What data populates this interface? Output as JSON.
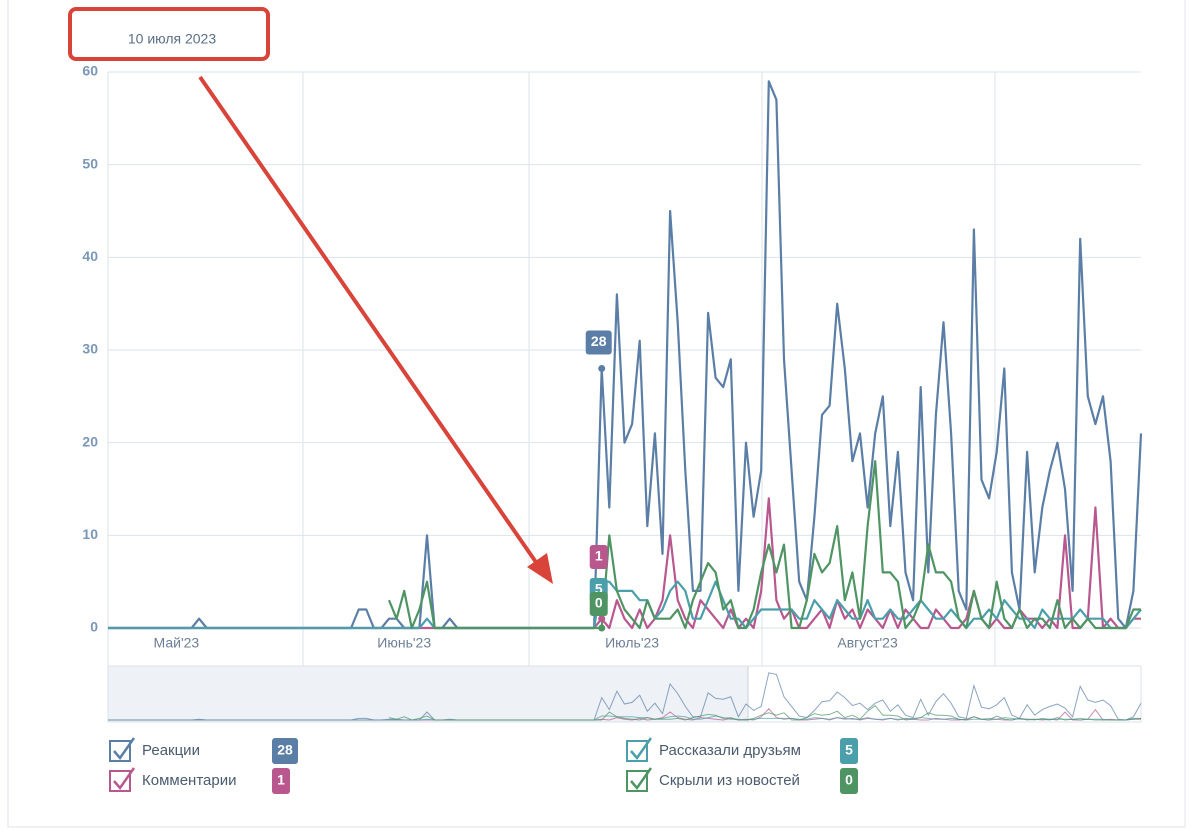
{
  "chart_data": {
    "type": "line",
    "tooltip_date": "10 июля 2023",
    "highlight_index": 65,
    "categories": [
      null,
      null,
      null,
      null,
      null,
      null,
      null,
      null,
      null,
      "Май'23",
      null,
      null,
      null,
      null,
      null,
      null,
      null,
      null,
      null,
      null,
      null,
      null,
      null,
      null,
      null,
      null,
      null,
      null,
      null,
      null,
      null,
      null,
      null,
      null,
      null,
      null,
      null,
      null,
      null,
      "Июнь'23",
      null,
      null,
      null,
      null,
      null,
      null,
      null,
      null,
      null,
      null,
      null,
      null,
      null,
      null,
      null,
      null,
      null,
      null,
      null,
      null,
      null,
      null,
      null,
      null,
      null,
      null,
      null,
      null,
      null,
      "Июль'23",
      null,
      null,
      null,
      null,
      null,
      null,
      null,
      null,
      null,
      null,
      null,
      null,
      null,
      null,
      null,
      null,
      null,
      null,
      null,
      null,
      null,
      null,
      null,
      null,
      null,
      null,
      null,
      null,
      null,
      null,
      "Август'23",
      null,
      null,
      null,
      null,
      null,
      null,
      null,
      null,
      null,
      null,
      null,
      null,
      null,
      null,
      null,
      null,
      null,
      null,
      null,
      null,
      null,
      null,
      null,
      null,
      null,
      null,
      null,
      null,
      null,
      null,
      null,
      null,
      null,
      null,
      null,
      null
    ],
    "ylim": [
      0,
      60
    ],
    "yticks": [
      0,
      10,
      20,
      30,
      40,
      50,
      60
    ],
    "grid": true,
    "series": [
      {
        "name": "Реакции",
        "color": "#5b7ea6",
        "values": [
          0,
          0,
          0,
          0,
          0,
          0,
          0,
          0,
          0,
          0,
          0,
          0,
          1,
          0,
          0,
          0,
          0,
          0,
          0,
          0,
          0,
          0,
          0,
          0,
          0,
          0,
          0,
          0,
          0,
          0,
          0,
          0,
          0,
          2,
          2,
          0,
          0,
          1,
          1,
          0,
          0,
          0,
          10,
          0,
          0,
          1,
          0,
          0,
          0,
          0,
          0,
          0,
          0,
          0,
          0,
          0,
          0,
          0,
          0,
          0,
          0,
          0,
          0,
          0,
          0,
          28,
          13,
          36,
          20,
          22,
          31,
          11,
          21,
          8,
          45,
          33,
          17,
          4,
          4,
          34,
          27,
          26,
          29,
          4,
          20,
          12,
          17,
          59,
          57,
          29,
          17,
          5,
          3,
          12,
          23,
          24,
          35,
          28,
          18,
          21,
          13,
          21,
          25,
          11,
          19,
          6,
          3,
          26,
          6,
          23,
          33,
          21,
          4,
          2,
          43,
          16,
          14,
          19,
          28,
          6,
          2,
          19,
          6,
          13,
          17,
          20,
          15,
          4,
          42,
          25,
          22,
          25,
          18,
          1,
          0,
          4,
          21
        ]
      },
      {
        "name": "Комментарии",
        "color": "#b9578f",
        "values": [
          0,
          0,
          0,
          0,
          0,
          0,
          0,
          0,
          0,
          0,
          0,
          0,
          0,
          0,
          0,
          0,
          0,
          0,
          0,
          0,
          0,
          0,
          0,
          0,
          0,
          0,
          0,
          0,
          0,
          0,
          0,
          0,
          0,
          0,
          0,
          0,
          0,
          0,
          0,
          0,
          0,
          0,
          0,
          0,
          0,
          0,
          0,
          0,
          0,
          0,
          0,
          0,
          0,
          0,
          0,
          0,
          0,
          0,
          0,
          0,
          0,
          0,
          0,
          0,
          0,
          1,
          0,
          3,
          1,
          0,
          2,
          0,
          1,
          3,
          10,
          3,
          1,
          0,
          3,
          2,
          1,
          0,
          2,
          0,
          1,
          0,
          4,
          14,
          3,
          1,
          2,
          0,
          0,
          1,
          2,
          0,
          3,
          1,
          2,
          0,
          2,
          1,
          0,
          2,
          0,
          2,
          1,
          0,
          0,
          2,
          1,
          0,
          0,
          1,
          4,
          1,
          0,
          1,
          0,
          0,
          2,
          1,
          1,
          0,
          1,
          0,
          10,
          0,
          0,
          1,
          13,
          0,
          1,
          0,
          0,
          1,
          1
        ]
      },
      {
        "name": "Рассказали друзьям",
        "color": "#4a9fab",
        "values": [
          0,
          0,
          0,
          0,
          0,
          0,
          0,
          0,
          0,
          0,
          0,
          0,
          0,
          0,
          0,
          0,
          0,
          0,
          0,
          0,
          0,
          0,
          0,
          0,
          0,
          0,
          0,
          0,
          0,
          0,
          0,
          0,
          0,
          0,
          0,
          0,
          0,
          0,
          0,
          0,
          0,
          0,
          1,
          0,
          0,
          0,
          0,
          0,
          0,
          0,
          0,
          0,
          0,
          0,
          0,
          0,
          0,
          0,
          0,
          0,
          0,
          0,
          0,
          0,
          0,
          5,
          5,
          4,
          4,
          4,
          3,
          3,
          1,
          2,
          4,
          5,
          4,
          1,
          1,
          3,
          5,
          3,
          1,
          1,
          0,
          1,
          2,
          2,
          2,
          2,
          2,
          1,
          1,
          3,
          2,
          1,
          3,
          2,
          1,
          1,
          3,
          1,
          1,
          2,
          1,
          1,
          2,
          3,
          2,
          1,
          1,
          2,
          1,
          0,
          1,
          1,
          2,
          1,
          3,
          2,
          1,
          1,
          0,
          2,
          1,
          1,
          1,
          1,
          2,
          1,
          1,
          1,
          0,
          0,
          0,
          1,
          2
        ]
      },
      {
        "name": "Скрыли из новостей",
        "color": "#4f9463",
        "values": [
          null,
          null,
          null,
          null,
          null,
          null,
          null,
          null,
          null,
          null,
          null,
          null,
          null,
          null,
          null,
          null,
          null,
          null,
          null,
          null,
          null,
          null,
          null,
          null,
          null,
          null,
          null,
          null,
          null,
          null,
          null,
          null,
          null,
          null,
          null,
          null,
          null,
          3,
          1,
          4,
          0,
          2,
          5,
          0,
          0,
          0,
          0,
          0,
          0,
          0,
          0,
          0,
          0,
          0,
          0,
          0,
          0,
          0,
          0,
          0,
          0,
          0,
          0,
          0,
          0,
          0,
          10,
          4,
          2,
          1,
          0,
          3,
          1,
          1,
          1,
          2,
          0,
          3,
          5,
          7,
          6,
          2,
          3,
          0,
          0,
          2,
          6,
          9,
          6,
          9,
          0,
          0,
          3,
          8,
          6,
          7,
          11,
          3,
          6,
          1,
          11,
          18,
          6,
          6,
          5,
          0,
          1,
          3,
          9,
          6,
          6,
          5,
          1,
          0,
          4,
          1,
          0,
          5,
          1,
          0,
          2,
          0,
          1,
          1,
          0,
          3,
          0,
          1,
          0,
          1,
          0,
          0,
          0,
          0,
          0,
          2,
          2
        ]
      }
    ]
  }
}
